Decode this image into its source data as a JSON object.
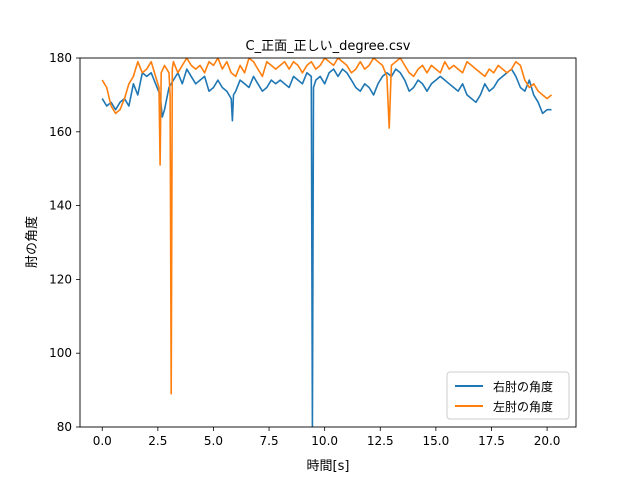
{
  "chart_data": {
    "type": "line",
    "title": "C_正面_正しい_degree.csv",
    "xlabel": "時間[s]",
    "ylabel": "肘の角度",
    "xlim": [
      -1.0,
      21.3
    ],
    "ylim": [
      80,
      180
    ],
    "xticks": [
      0,
      2.5,
      5,
      7.5,
      10,
      12.5,
      15,
      17.5,
      20
    ],
    "xtick_labels": [
      "0.0",
      "2.5",
      "5.0",
      "7.5",
      "10.0",
      "12.5",
      "15.0",
      "17.5",
      "20.0"
    ],
    "yticks": [
      80,
      100,
      120,
      140,
      160,
      180
    ],
    "ytick_labels": [
      "80",
      "100",
      "120",
      "140",
      "160",
      "180"
    ],
    "legend_position": "lower right",
    "series": [
      {
        "name": "右肘の角度",
        "color": "#1f77b4",
        "x": [
          0.0,
          0.2,
          0.4,
          0.6,
          0.8,
          1.0,
          1.2,
          1.4,
          1.6,
          1.8,
          2.0,
          2.2,
          2.4,
          2.6,
          2.7,
          2.8,
          3.0,
          3.2,
          3.4,
          3.6,
          3.8,
          4.0,
          4.2,
          4.4,
          4.6,
          4.8,
          5.0,
          5.2,
          5.4,
          5.6,
          5.8,
          5.85,
          5.9,
          6.0,
          6.2,
          6.4,
          6.6,
          6.8,
          7.0,
          7.2,
          7.4,
          7.6,
          7.8,
          8.0,
          8.2,
          8.4,
          8.6,
          8.8,
          9.0,
          9.2,
          9.4,
          9.45,
          9.5,
          9.55,
          9.6,
          9.8,
          10.0,
          10.2,
          10.4,
          10.6,
          10.8,
          11.0,
          11.2,
          11.4,
          11.6,
          11.8,
          12.0,
          12.2,
          12.4,
          12.6,
          12.8,
          13.0,
          13.2,
          13.4,
          13.6,
          13.8,
          14.0,
          14.2,
          14.4,
          14.6,
          14.8,
          15.0,
          15.2,
          15.4,
          15.6,
          15.8,
          16.0,
          16.2,
          16.4,
          16.6,
          16.8,
          17.0,
          17.2,
          17.4,
          17.6,
          17.8,
          18.0,
          18.2,
          18.4,
          18.6,
          18.8,
          19.0,
          19.2,
          19.4,
          19.6,
          19.8,
          20.0,
          20.2
        ],
        "values": [
          169,
          167,
          168,
          166,
          168,
          169,
          167,
          173,
          170,
          176,
          175,
          176,
          173,
          170,
          164,
          166,
          172,
          174,
          176,
          173,
          177,
          175,
          173,
          174,
          175,
          171,
          172,
          174,
          172,
          171,
          169,
          163,
          170,
          171,
          174,
          173,
          172,
          175,
          173,
          171,
          172,
          174,
          173,
          174,
          173,
          172,
          175,
          174,
          173,
          176,
          175,
          80,
          172,
          173,
          174,
          175,
          173,
          176,
          177,
          175,
          177,
          176,
          174,
          172,
          171,
          173,
          172,
          170,
          173,
          175,
          176,
          175,
          177,
          176,
          174,
          171,
          172,
          174,
          173,
          171,
          173,
          174,
          175,
          174,
          173,
          172,
          171,
          173,
          170,
          169,
          168,
          170,
          173,
          171,
          172,
          174,
          175,
          176,
          177,
          175,
          172,
          171,
          174,
          170,
          168,
          165,
          166,
          166
        ]
      },
      {
        "name": "左肘の角度",
        "color": "#ff7f0e",
        "x": [
          0.0,
          0.2,
          0.4,
          0.6,
          0.8,
          1.0,
          1.2,
          1.4,
          1.6,
          1.8,
          2.0,
          2.2,
          2.4,
          2.55,
          2.6,
          2.65,
          2.8,
          3.0,
          3.05,
          3.1,
          3.15,
          3.2,
          3.4,
          3.6,
          3.8,
          4.0,
          4.2,
          4.4,
          4.6,
          4.8,
          5.0,
          5.2,
          5.4,
          5.6,
          5.8,
          6.0,
          6.2,
          6.4,
          6.6,
          6.8,
          7.0,
          7.2,
          7.4,
          7.6,
          7.8,
          8.0,
          8.2,
          8.4,
          8.6,
          8.8,
          9.0,
          9.2,
          9.4,
          9.6,
          9.8,
          10.0,
          10.2,
          10.4,
          10.6,
          10.8,
          11.0,
          11.2,
          11.4,
          11.6,
          11.8,
          12.0,
          12.2,
          12.4,
          12.6,
          12.8,
          12.9,
          13.0,
          13.2,
          13.4,
          13.6,
          13.8,
          14.0,
          14.2,
          14.4,
          14.6,
          14.8,
          15.0,
          15.2,
          15.4,
          15.6,
          15.8,
          16.0,
          16.2,
          16.4,
          16.6,
          16.8,
          17.0,
          17.2,
          17.4,
          17.6,
          17.8,
          18.0,
          18.2,
          18.4,
          18.6,
          18.8,
          19.0,
          19.2,
          19.4,
          19.6,
          19.8,
          20.0,
          20.2
        ],
        "values": [
          174,
          172,
          167,
          165,
          166,
          169,
          173,
          175,
          179,
          176,
          177,
          179,
          175,
          172,
          151,
          176,
          178,
          176,
          170,
          89,
          177,
          179,
          176,
          178,
          180,
          178,
          177,
          178,
          176,
          179,
          178,
          180,
          177,
          179,
          176,
          175,
          178,
          176,
          180,
          179,
          177,
          175,
          179,
          178,
          177,
          178,
          179,
          177,
          179,
          178,
          176,
          178,
          179,
          177,
          178,
          180,
          179,
          178,
          180,
          179,
          178,
          176,
          177,
          179,
          177,
          178,
          180,
          179,
          178,
          175,
          161,
          178,
          179,
          180,
          178,
          176,
          175,
          177,
          178,
          176,
          178,
          177,
          176,
          179,
          177,
          178,
          177,
          176,
          179,
          178,
          177,
          176,
          175,
          177,
          176,
          178,
          177,
          176,
          177,
          179,
          178,
          174,
          172,
          173,
          171,
          170,
          169,
          170
        ]
      }
    ]
  }
}
